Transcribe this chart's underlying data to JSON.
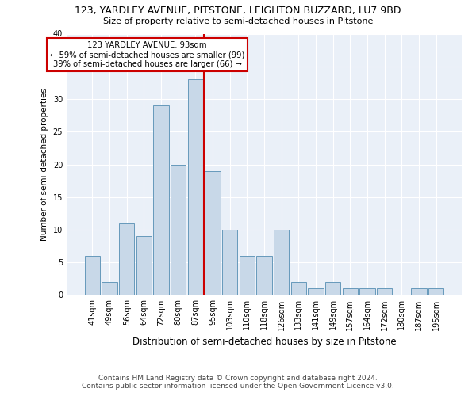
{
  "title": "123, YARDLEY AVENUE, PITSTONE, LEIGHTON BUZZARD, LU7 9BD",
  "subtitle": "Size of property relative to semi-detached houses in Pitstone",
  "xlabel": "Distribution of semi-detached houses by size in Pitstone",
  "ylabel": "Number of semi-detached properties",
  "categories": [
    "41sqm",
    "49sqm",
    "56sqm",
    "64sqm",
    "72sqm",
    "80sqm",
    "87sqm",
    "95sqm",
    "103sqm",
    "110sqm",
    "118sqm",
    "126sqm",
    "133sqm",
    "141sqm",
    "149sqm",
    "157sqm",
    "164sqm",
    "172sqm",
    "180sqm",
    "187sqm",
    "195sqm"
  ],
  "values": [
    6,
    2,
    11,
    9,
    29,
    20,
    33,
    19,
    10,
    6,
    6,
    10,
    2,
    1,
    2,
    1,
    1,
    1,
    0,
    1,
    1
  ],
  "bar_color": "#c8d8e8",
  "bar_edge_color": "#6699bb",
  "property_line_color": "#cc0000",
  "annotation_text": "123 YARDLEY AVENUE: 93sqm\n← 59% of semi-detached houses are smaller (99)\n39% of semi-detached houses are larger (66) →",
  "annotation_box_color": "#ffffff",
  "annotation_box_edge_color": "#cc0000",
  "ylim": [
    0,
    40
  ],
  "yticks": [
    0,
    5,
    10,
    15,
    20,
    25,
    30,
    35,
    40
  ],
  "background_color": "#eaf0f8",
  "footer_line1": "Contains HM Land Registry data © Crown copyright and database right 2024.",
  "footer_line2": "Contains public sector information licensed under the Open Government Licence v3.0."
}
